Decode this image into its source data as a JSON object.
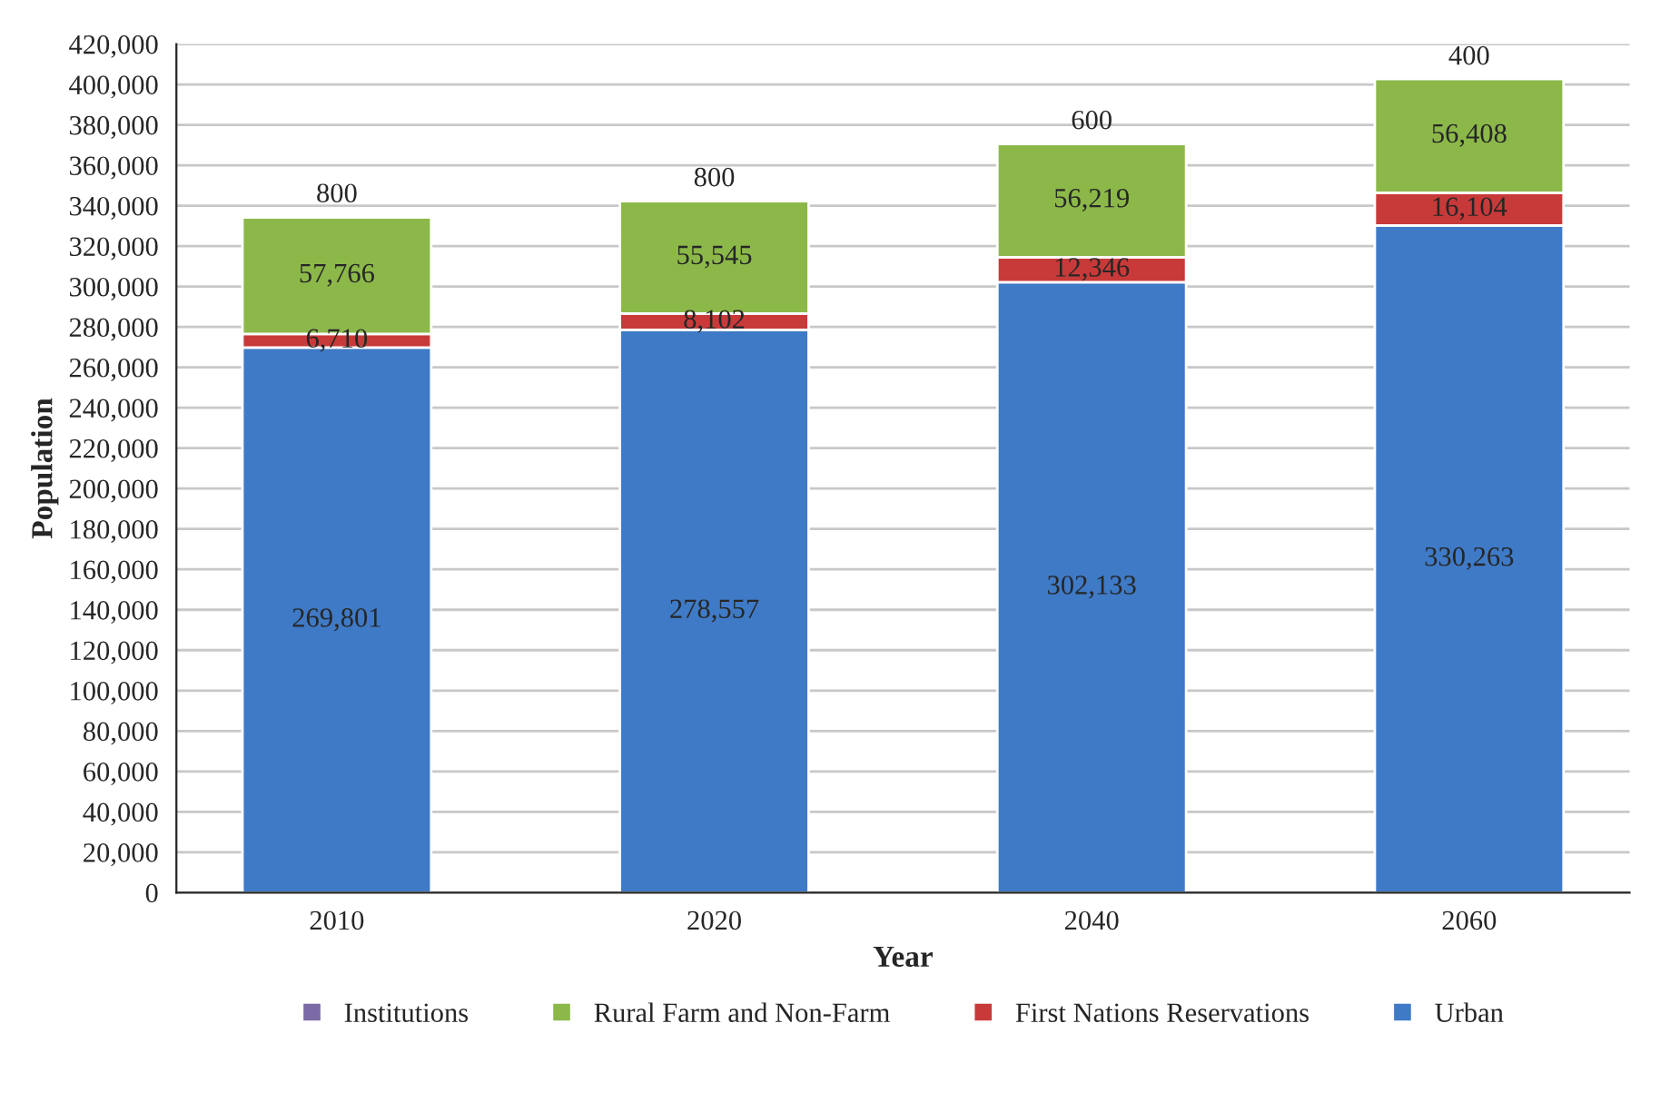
{
  "chart_data": {
    "type": "bar",
    "stacked": true,
    "xlabel": "Year",
    "ylabel": "Population",
    "categories": [
      "2010",
      "2020",
      "2040",
      "2060"
    ],
    "series": [
      {
        "name": "Urban",
        "color": "#3f7ac6",
        "values": [
          269801,
          278557,
          302133,
          330263
        ],
        "value_labels": [
          "269,801",
          "278,557",
          "302,133",
          "330,263"
        ]
      },
      {
        "name": "First Nations Reservations",
        "color": "#c83a3a",
        "values": [
          6710,
          8102,
          12346,
          16104
        ],
        "value_labels": [
          "6,710",
          "8,102",
          "12,346",
          "16,104"
        ]
      },
      {
        "name": "Rural Farm and Non-Farm",
        "color": "#8cb84a",
        "values": [
          57766,
          55545,
          56219,
          56408
        ],
        "value_labels": [
          "57,766",
          "55,545",
          "56,219",
          "56,408"
        ]
      },
      {
        "name": "Institutions",
        "color": "#7b6aa6",
        "values": [
          800,
          800,
          600,
          400
        ],
        "value_labels": [
          "800",
          "800",
          "600",
          "400"
        ]
      }
    ],
    "ylim": [
      0,
      420000
    ],
    "yticks": [
      0,
      {
        "value": 20000,
        "label": "20,000"
      },
      {
        "value": 40000,
        "label": "40,000"
      },
      {
        "value": 60000,
        "label": "60,000"
      },
      {
        "value": 80000,
        "label": "80,000"
      },
      {
        "value": 100000,
        "label": "100,000"
      },
      {
        "value": 120000,
        "label": "120,000"
      },
      {
        "value": 140000,
        "label": "140,000"
      },
      {
        "value": 160000,
        "label": "160,000"
      },
      {
        "value": 180000,
        "label": "180,000"
      },
      {
        "value": 200000,
        "label": "200,000"
      },
      {
        "value": 220000,
        "label": "220,000"
      },
      {
        "value": 240000,
        "label": "240,000"
      },
      {
        "value": 260000,
        "label": "260,000"
      },
      {
        "value": 280000,
        "label": "280,000"
      },
      {
        "value": 300000,
        "label": "300,000"
      },
      {
        "value": 320000,
        "label": "320,000"
      },
      {
        "value": 340000,
        "label": "340,000"
      },
      {
        "value": 360000,
        "label": "360,000"
      },
      {
        "value": 380000,
        "label": "380,000"
      },
      {
        "value": 400000,
        "label": "400,000"
      },
      {
        "value": 420000,
        "label": "420,000"
      }
    ],
    "grid": "y",
    "legend": "bottom"
  }
}
